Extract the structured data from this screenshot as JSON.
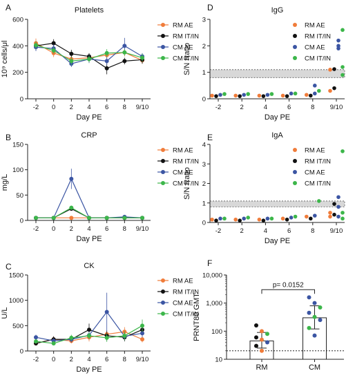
{
  "colors": {
    "RM AE": "#f07c3a",
    "RM IT/IN": "#111111",
    "CM AE": "#3b55a3",
    "CM IT/IN": "#3cb64a",
    "grey": "#bdbdbd"
  },
  "chart_data": [
    {
      "panel": "A",
      "type": "line",
      "title": "Platelets",
      "xlabel": "Day PE",
      "ylabel": "10⁹ cells/μl",
      "categories": [
        "-2",
        "0",
        "2",
        "4",
        "6",
        "8",
        "9/10"
      ],
      "ylim": [
        0,
        600
      ],
      "yticks": [
        "0",
        "200",
        "400",
        "600"
      ],
      "legend": "top-right",
      "series": [
        {
          "name": "RM AE",
          "values": [
            420,
            345,
            300,
            310,
            330,
            350,
            290
          ],
          "err": [
            35,
            30,
            30,
            25,
            30,
            30,
            25
          ]
        },
        {
          "name": "RM IT/IN",
          "values": [
            400,
            420,
            340,
            320,
            230,
            285,
            295
          ],
          "err": [
            30,
            30,
            30,
            25,
            45,
            25,
            30
          ]
        },
        {
          "name": "CM AE",
          "values": [
            390,
            380,
            265,
            300,
            285,
            400,
            320
          ],
          "err": [
            30,
            30,
            25,
            30,
            30,
            60,
            25
          ]
        },
        {
          "name": "CM IT/IN",
          "values": [
            405,
            365,
            285,
            300,
            345,
            350,
            310
          ],
          "err": [
            30,
            25,
            30,
            25,
            30,
            25,
            30
          ]
        }
      ]
    },
    {
      "panel": "B",
      "type": "line",
      "title": "CRP",
      "xlabel": "Day PE",
      "ylabel": "mg/L",
      "categories": [
        "-2",
        "0",
        "2",
        "4",
        "6",
        "8",
        "9/10"
      ],
      "ylim": [
        0,
        150
      ],
      "yticks": [
        "0",
        "50",
        "100",
        "150"
      ],
      "legend": "top-right",
      "series": [
        {
          "name": "RM AE",
          "values": [
            5,
            5,
            5,
            5,
            5,
            5,
            5
          ],
          "err": [
            1,
            1,
            1,
            1,
            1,
            1,
            1
          ]
        },
        {
          "name": "RM IT/IN",
          "values": [
            5,
            5,
            23,
            5,
            5,
            5,
            5
          ],
          "err": [
            1,
            1,
            4,
            1,
            1,
            1,
            1
          ]
        },
        {
          "name": "CM AE",
          "values": [
            5,
            5,
            82,
            5,
            5,
            7,
            5
          ],
          "err": [
            1,
            1,
            20,
            1,
            1,
            2,
            1
          ]
        },
        {
          "name": "CM IT/IN",
          "values": [
            5,
            5,
            25,
            5,
            5,
            5,
            5
          ],
          "err": [
            1,
            1,
            4,
            1,
            1,
            1,
            1
          ]
        }
      ]
    },
    {
      "panel": "C",
      "type": "line",
      "title": "CK",
      "xlabel": "Day PE",
      "ylabel": "U/L",
      "categories": [
        "-2",
        "0",
        "2",
        "4",
        "6",
        "8",
        "9/10"
      ],
      "ylim": [
        0,
        1500
      ],
      "yticks": [
        "0",
        "500",
        "1000",
        "1500"
      ],
      "legend": "top-right",
      "series": [
        {
          "name": "RM AE",
          "values": [
            150,
            230,
            200,
            270,
            330,
            380,
            230
          ],
          "err": [
            40,
            60,
            50,
            80,
            80,
            90,
            60
          ]
        },
        {
          "name": "RM IT/IN",
          "values": [
            150,
            230,
            230,
            420,
            300,
            270,
            420
          ],
          "err": [
            40,
            60,
            60,
            120,
            100,
            80,
            100
          ]
        },
        {
          "name": "CM AE",
          "values": [
            270,
            200,
            230,
            310,
            770,
            290,
            350
          ],
          "err": [
            50,
            50,
            60,
            80,
            380,
            80,
            80
          ]
        },
        {
          "name": "CM IT/IN",
          "values": [
            190,
            150,
            260,
            300,
            260,
            300,
            500
          ],
          "err": [
            40,
            40,
            60,
            70,
            80,
            90,
            120
          ]
        }
      ]
    },
    {
      "panel": "D",
      "type": "scatter",
      "title": "IgG",
      "xlabel": "Day PE",
      "ylabel": "S/N Ratio",
      "categories": [
        "-2",
        "2",
        "4",
        "6",
        "8",
        "9/10"
      ],
      "ylim": [
        0,
        3
      ],
      "yticks": [
        "0",
        "1",
        "2",
        "3"
      ],
      "band": [
        0.8,
        1.1
      ],
      "legend": "top-right",
      "series": [
        {
          "name": "RM AE",
          "points": [
            [
              0,
              0.12
            ],
            [
              1,
              0.12
            ],
            [
              2,
              0.12
            ],
            [
              3,
              0.12
            ],
            [
              4,
              0.15
            ],
            [
              5,
              1.1
            ],
            [
              5,
              0.3
            ]
          ]
        },
        {
          "name": "RM IT/IN",
          "points": [
            [
              0,
              0.1
            ],
            [
              1,
              0.1
            ],
            [
              2,
              0.1
            ],
            [
              3,
              0.1
            ],
            [
              4,
              0.12
            ],
            [
              5,
              1.12
            ],
            [
              5,
              0.4
            ]
          ]
        },
        {
          "name": "CM AE",
          "points": [
            [
              0,
              0.15
            ],
            [
              1,
              0.15
            ],
            [
              2,
              0.15
            ],
            [
              3,
              0.2
            ],
            [
              4,
              0.5
            ],
            [
              4,
              0.2
            ],
            [
              5,
              2.2
            ],
            [
              5,
              2.0
            ],
            [
              5,
              1.9
            ]
          ]
        },
        {
          "name": "CM IT/IN",
          "points": [
            [
              0,
              0.18
            ],
            [
              1,
              0.18
            ],
            [
              2,
              0.18
            ],
            [
              3,
              0.2
            ],
            [
              4,
              0.3
            ],
            [
              5,
              2.6
            ],
            [
              5,
              1.2
            ],
            [
              5,
              0.9
            ]
          ]
        }
      ]
    },
    {
      "panel": "E",
      "type": "scatter",
      "title": "IgA",
      "xlabel": "Day PE",
      "ylabel": "S/N Ratio",
      "categories": [
        "-2",
        "2",
        "4",
        "6",
        "8",
        "9/10"
      ],
      "ylim": [
        0,
        4
      ],
      "yticks": [
        "0",
        "1",
        "2",
        "3",
        "4"
      ],
      "band": [
        0.8,
        1.1
      ],
      "legend": "top-right",
      "series": [
        {
          "name": "RM AE",
          "points": [
            [
              0,
              0.15
            ],
            [
              1,
              0.15
            ],
            [
              2,
              0.15
            ],
            [
              3,
              0.2
            ],
            [
              4,
              0.3
            ],
            [
              5,
              0.5
            ],
            [
              5,
              0.3
            ]
          ]
        },
        {
          "name": "RM IT/IN",
          "points": [
            [
              0,
              0.1
            ],
            [
              1,
              0.1
            ],
            [
              2,
              0.1
            ],
            [
              3,
              0.15
            ],
            [
              4,
              0.2
            ],
            [
              5,
              0.95
            ],
            [
              5,
              0.4
            ]
          ]
        },
        {
          "name": "CM AE",
          "points": [
            [
              0,
              0.2
            ],
            [
              1,
              0.2
            ],
            [
              2,
              0.2
            ],
            [
              3,
              0.25
            ],
            [
              4,
              0.35
            ],
            [
              5,
              1.3
            ],
            [
              5,
              0.8
            ],
            [
              5,
              0.3
            ]
          ]
        },
        {
          "name": "CM IT/IN",
          "points": [
            [
              0,
              0.2
            ],
            [
              1,
              0.25
            ],
            [
              2,
              0.2
            ],
            [
              3,
              0.3
            ],
            [
              4,
              1.1
            ],
            [
              5,
              3.65
            ],
            [
              5,
              0.5
            ],
            [
              5,
              0.2
            ]
          ]
        }
      ]
    },
    {
      "panel": "F",
      "type": "scatter",
      "title": "",
      "xlabel": "",
      "ylabel": "PRNT80 GMT",
      "categories": [
        "RM",
        "CM"
      ],
      "ylim": [
        10,
        10000
      ],
      "log": true,
      "yticks": [
        "10",
        "100",
        "1,000",
        "10,000"
      ],
      "bars": [
        45,
        300
      ],
      "err": [
        [
          25,
          90
        ],
        [
          120,
          800
        ]
      ],
      "threshold": 20,
      "annotation": "p= 0.0152",
      "groups": [
        {
          "name": "RM",
          "points": [
            [
              "#111111",
              160
            ],
            [
              "#f07c3a",
              100
            ],
            [
              "#3cb64a",
              80
            ],
            [
              "#111111",
              60
            ],
            [
              "#f07c3a",
              50
            ],
            [
              "#3b55a3",
              40
            ],
            [
              "#111111",
              30
            ],
            [
              "#f07c3a",
              20
            ]
          ]
        },
        {
          "name": "CM",
          "points": [
            [
              "#3b55a3",
              1600
            ],
            [
              "#3b55a3",
              1000
            ],
            [
              "#3cb64a",
              700
            ],
            [
              "#3b55a3",
              450
            ],
            [
              "#3cb64a",
              320
            ],
            [
              "#3b55a3",
              250
            ],
            [
              "#3cb64a",
              130
            ],
            [
              "#3b55a3",
              70
            ]
          ]
        }
      ]
    }
  ],
  "panel_letters": [
    "A",
    "B",
    "C",
    "D",
    "E",
    "F"
  ]
}
